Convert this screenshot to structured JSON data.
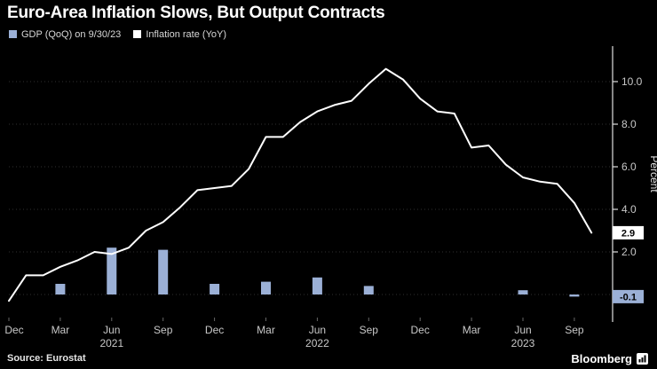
{
  "title": "Euro-Area Inflation Slows, But Output Contracts",
  "legend": {
    "items": [
      {
        "label": "GDP (QoQ) on 9/30/23",
        "color": "#9bb0d6"
      },
      {
        "label": "Inflation rate (YoY)",
        "color": "#ffffff"
      }
    ]
  },
  "footer": {
    "source": "Source: Eurostat",
    "brand": "Bloomberg"
  },
  "colors": {
    "background": "#000000",
    "bar": "#9bb0d6",
    "line": "#ffffff",
    "axis": "#e0e0e0",
    "tick_text": "#c8c8c8",
    "grid": "#303030"
  },
  "chart_data": {
    "type": "combo",
    "title": "Euro-Area Inflation Slows, But Output Contracts",
    "x_unit": "month",
    "x_start": "Dec 2020",
    "x_end": "Oct 2023",
    "series": [
      {
        "name": "GDP (QoQ) on 9/30/23",
        "type": "bar",
        "color": "#9bb0d6",
        "x_indices": [
          3,
          6,
          9,
          12,
          15,
          18,
          21,
          24,
          27,
          30,
          33
        ],
        "values": [
          0.5,
          2.2,
          2.1,
          0.5,
          0.6,
          0.8,
          0.4,
          0.0,
          0.0,
          0.2,
          -0.1
        ]
      },
      {
        "name": "Inflation rate (YoY)",
        "type": "line",
        "color": "#ffffff",
        "values": [
          -0.3,
          0.9,
          0.9,
          1.3,
          1.6,
          2.0,
          1.9,
          2.2,
          3.0,
          3.4,
          4.1,
          4.9,
          5.0,
          5.1,
          5.9,
          7.4,
          7.4,
          8.1,
          8.6,
          8.9,
          9.1,
          9.9,
          10.6,
          10.1,
          9.2,
          8.6,
          8.5,
          6.9,
          7.0,
          6.1,
          5.5,
          5.3,
          5.2,
          4.3,
          2.9
        ]
      }
    ],
    "x_ticks": [
      {
        "index": 0,
        "label": "Dec"
      },
      {
        "index": 3,
        "label": "Mar"
      },
      {
        "index": 6,
        "label": "Jun"
      },
      {
        "index": 9,
        "label": "Sep"
      },
      {
        "index": 12,
        "label": "Dec"
      },
      {
        "index": 15,
        "label": "Mar"
      },
      {
        "index": 18,
        "label": "Jun"
      },
      {
        "index": 21,
        "label": "Sep"
      },
      {
        "index": 24,
        "label": "Dec"
      },
      {
        "index": 27,
        "label": "Mar"
      },
      {
        "index": 30,
        "label": "Jun"
      },
      {
        "index": 33,
        "label": "Sep"
      }
    ],
    "year_labels": [
      {
        "index": 6,
        "label": "2021"
      },
      {
        "index": 18,
        "label": "2022"
      },
      {
        "index": 30,
        "label": "2023"
      }
    ],
    "ylim": [
      -1.0,
      11.5
    ],
    "yticks": [
      2.0,
      4.0,
      6.0,
      8.0,
      10.0
    ],
    "ytick_labels": [
      "2.0",
      "4.0",
      "6.0",
      "8.0",
      "10.0"
    ],
    "ylabel": "Percent",
    "grid": "dotted-horizontal",
    "legend_position": "top-left",
    "end_labels": [
      {
        "text": "2.9",
        "value": 2.9,
        "bg": "#ffffff",
        "fg": "#000000"
      },
      {
        "text": "-0.1",
        "value": -0.1,
        "bg": "#9bb0d6",
        "fg": "#000000"
      }
    ]
  }
}
